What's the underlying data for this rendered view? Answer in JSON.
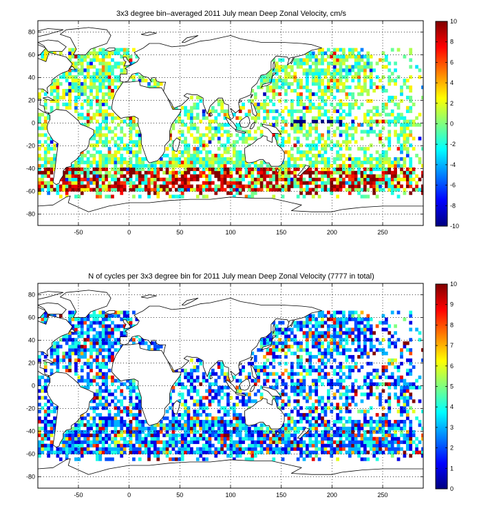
{
  "chart_data": [
    {
      "type": "heatmap",
      "title": "3x3 degree bin–averaged 2011 July mean Deep Zonal Velocity, cm/s",
      "xlim": [
        -90,
        290
      ],
      "ylim": [
        -90,
        90
      ],
      "xticks": [
        -50,
        0,
        50,
        100,
        150,
        200,
        250
      ],
      "yticks": [
        80,
        60,
        40,
        20,
        0,
        -20,
        -40,
        -60,
        -80
      ],
      "grid": true,
      "colormap": "jet",
      "colorbar": {
        "min": -10,
        "max": 10,
        "ticks": [
          10,
          8,
          6,
          4,
          2,
          0,
          -2,
          -4,
          -6,
          -8,
          -10
        ]
      },
      "bin_size_deg": 3
    },
    {
      "type": "heatmap",
      "title": "N of cycles per 3x3 degree bin for 2011 July mean Deep Zonal Velocity (7777 in total)",
      "xlim": [
        -90,
        290
      ],
      "ylim": [
        -90,
        90
      ],
      "xticks": [
        -50,
        0,
        50,
        100,
        150,
        200,
        250
      ],
      "yticks": [
        80,
        60,
        40,
        20,
        0,
        -20,
        -40,
        -60,
        -80
      ],
      "grid": true,
      "colormap": "jet",
      "colorbar": {
        "min": 0,
        "max": 10,
        "ticks": [
          10,
          9,
          8,
          7,
          6,
          5,
          4,
          3,
          2,
          1,
          0
        ]
      },
      "bin_size_deg": 3,
      "total_cycles": 7777
    }
  ]
}
